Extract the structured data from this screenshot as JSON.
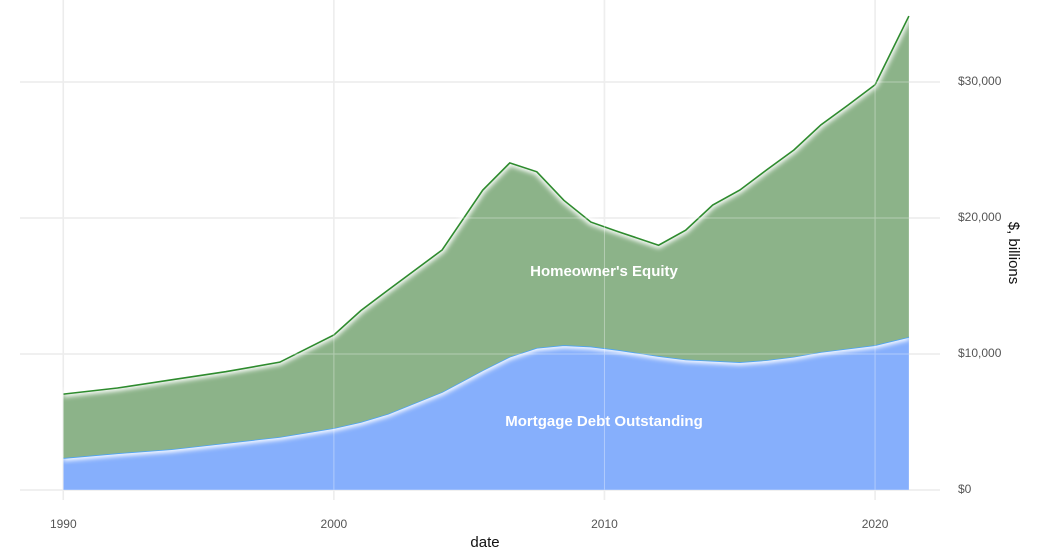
{
  "chart_data": {
    "type": "stacked-area",
    "x_label": "date",
    "y_label": "$, billions",
    "x": [
      1990,
      1992,
      1994,
      1996,
      1998,
      2000,
      2001,
      2002,
      2004,
      2005.5,
      2006.5,
      2007.5,
      2008.5,
      2009.5,
      2010.5,
      2012,
      2013,
      2014,
      2015,
      2016,
      2017,
      2018,
      2019,
      2020,
      2021.25
    ],
    "series": [
      {
        "name": "Mortgage Debt Outstanding",
        "color": "#86affc",
        "line_color": "#4da3f5",
        "values": [
          2350,
          2700,
          3000,
          3450,
          3900,
          4550,
          5000,
          5600,
          7200,
          8800,
          9800,
          10450,
          10650,
          10550,
          10300,
          9850,
          9600,
          9500,
          9400,
          9550,
          9800,
          10150,
          10400,
          10650,
          11250
        ]
      },
      {
        "name": "Homeowner's Equity",
        "color": "#8cb389",
        "line_color": "#2e8b2e",
        "values": [
          4700,
          4800,
          5100,
          5250,
          5500,
          6850,
          8200,
          9100,
          10450,
          13250,
          14250,
          12950,
          10650,
          9150,
          8700,
          8150,
          9500,
          11450,
          12650,
          14000,
          15200,
          16700,
          17900,
          19150,
          23600
        ]
      }
    ],
    "xlim": [
      1988.4,
      2022.4
    ],
    "xticks": [
      1990,
      2000,
      2010,
      2020
    ],
    "ylim": [
      -735,
      36030
    ],
    "yticks": [
      {
        "value": 0,
        "label": "$0"
      },
      {
        "value": 10000,
        "label": "$10,000"
      },
      {
        "value": 20000,
        "label": "$20,000"
      },
      {
        "value": 30000,
        "label": "$30,000"
      }
    ],
    "grid": true
  }
}
